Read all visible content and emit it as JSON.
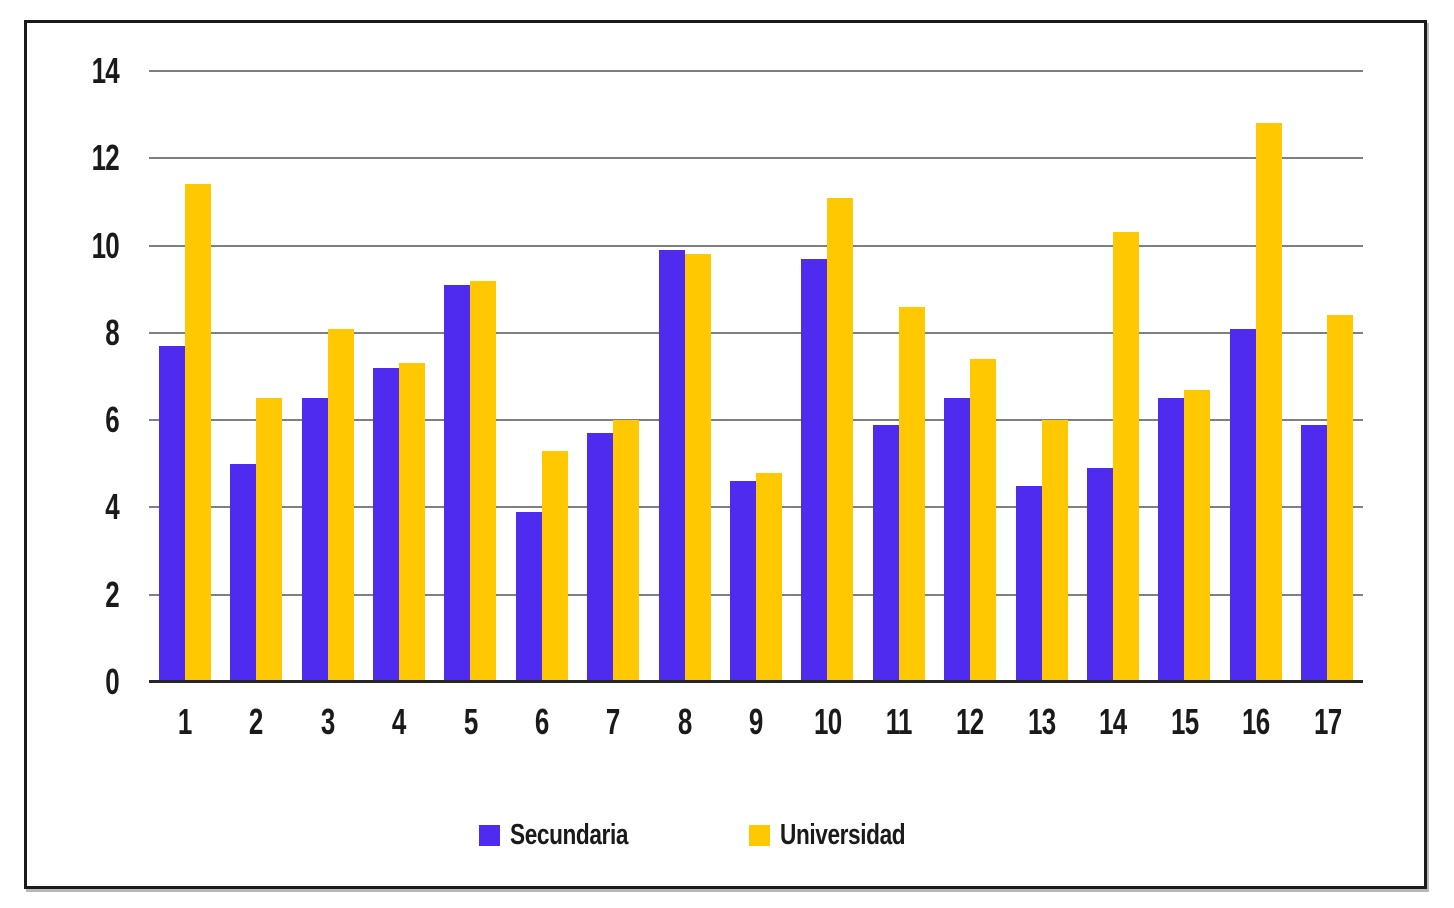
{
  "chart_data": {
    "type": "bar",
    "categories": [
      "1",
      "2",
      "3",
      "4",
      "5",
      "6",
      "7",
      "8",
      "9",
      "10",
      "11",
      "12",
      "13",
      "14",
      "15",
      "16",
      "17"
    ],
    "series": [
      {
        "name": "Secundaria",
        "color": "#4E2BEE",
        "values": [
          7.7,
          5.0,
          6.5,
          7.2,
          9.1,
          3.9,
          5.7,
          9.9,
          4.6,
          9.7,
          5.9,
          6.5,
          4.5,
          4.9,
          6.5,
          8.1,
          5.9
        ]
      },
      {
        "name": "Universidad",
        "color": "#FFC800",
        "values": [
          11.4,
          6.5,
          8.1,
          7.3,
          9.2,
          5.3,
          6.0,
          9.8,
          4.8,
          11.1,
          8.6,
          7.4,
          6.0,
          10.3,
          6.7,
          12.8,
          8.4
        ]
      }
    ],
    "title": "",
    "xlabel": "",
    "ylabel": "",
    "ylim": [
      0,
      14
    ],
    "yticks": [
      0,
      2,
      4,
      6,
      8,
      10,
      12,
      14
    ],
    "grid": "horizontal",
    "legend_position": "bottom"
  },
  "legend": {
    "items": [
      {
        "label": "Secundaria",
        "color": "#4E2BEE"
      },
      {
        "label": "Universidad",
        "color": "#FFC800"
      }
    ]
  },
  "colors": {
    "secundaria": "#4E2BEE",
    "universidad": "#FFC800",
    "grid": "#7F7F7F",
    "axis": "#262626",
    "frame_border": "#1A1A1A",
    "background": "#FFFFFF",
    "text": "#1A1A1A"
  }
}
